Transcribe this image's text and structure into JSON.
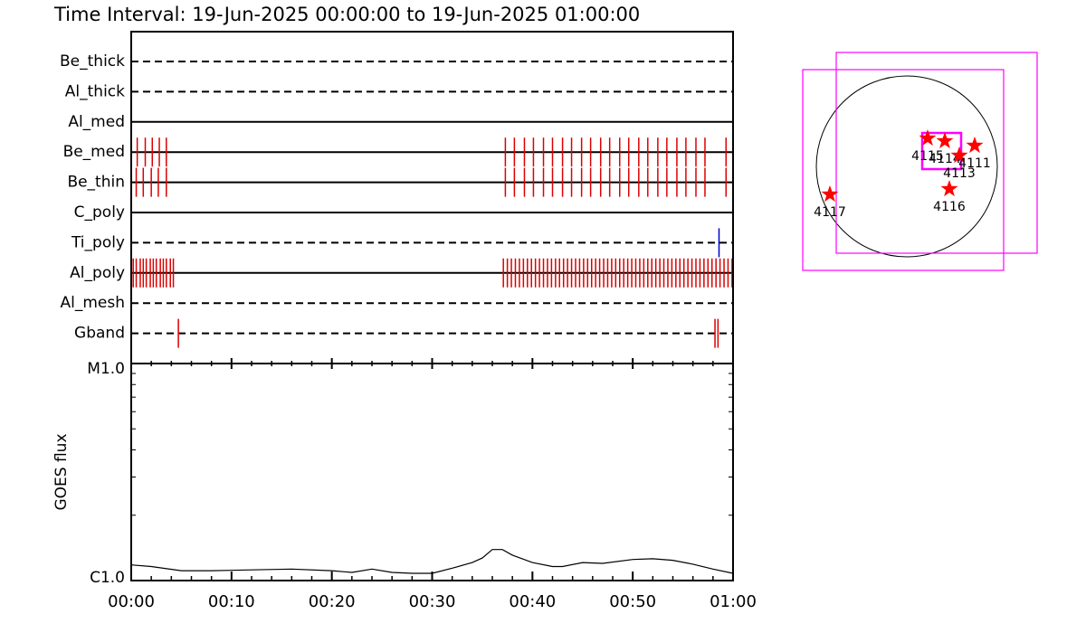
{
  "title": "Time Interval: 19-Jun-2025 00:00:00 to 19-Jun-2025 01:00:00",
  "chart_data": [
    {
      "type": "events",
      "xlim": [
        0,
        60
      ],
      "rows": [
        {
          "name": "Be_thick",
          "style": "dashed",
          "color": "#dd0000",
          "events": []
        },
        {
          "name": "Al_thick",
          "style": "dashed",
          "color": "#dd0000",
          "events": []
        },
        {
          "name": "Al_med",
          "style": "solid",
          "color": "#dd0000",
          "events": []
        },
        {
          "name": "Be_med",
          "style": "solid",
          "color": "#dd0000",
          "events": [
            0.6,
            1.4,
            2.1,
            2.8,
            3.5,
            37.3,
            38.2,
            39.2,
            40.1,
            41.1,
            42.0,
            43.0,
            43.9,
            44.9,
            45.8,
            46.8,
            47.7,
            48.7,
            49.6,
            50.6,
            51.5,
            52.5,
            53.4,
            54.4,
            55.3,
            56.3,
            57.2,
            59.3
          ]
        },
        {
          "name": "Be_thin",
          "style": "solid",
          "color": "#dd0000",
          "events": [
            0.5,
            1.2,
            2.0,
            2.7,
            3.5,
            37.3,
            38.2,
            39.2,
            40.1,
            41.1,
            42.0,
            43.0,
            43.9,
            44.9,
            45.8,
            46.8,
            47.7,
            48.7,
            49.6,
            50.6,
            51.5,
            52.5,
            53.4,
            54.4,
            55.3,
            56.3,
            57.2,
            59.3
          ]
        },
        {
          "name": "C_poly",
          "style": "solid",
          "color": "#dd0000",
          "events": []
        },
        {
          "name": "Ti_poly",
          "style": "dashed",
          "color": "#0000cc",
          "events": [
            58.6
          ]
        },
        {
          "name": "Al_poly",
          "style": "solid",
          "color": "#dd0000",
          "events": [
            0.2,
            0.5,
            0.9,
            1.2,
            1.5,
            1.9,
            2.2,
            2.5,
            2.9,
            3.2,
            3.5,
            3.9,
            4.2,
            37.1,
            37.5,
            37.9,
            38.3,
            38.7,
            39.1,
            39.5,
            39.9,
            40.3,
            40.7,
            41.1,
            41.5,
            41.9,
            42.3,
            42.7,
            43.1,
            43.5,
            43.9,
            44.3,
            44.7,
            45.1,
            45.5,
            45.9,
            46.3,
            46.7,
            47.1,
            47.5,
            47.9,
            48.3,
            48.7,
            49.1,
            49.5,
            49.9,
            50.3,
            50.7,
            51.1,
            51.5,
            51.9,
            52.3,
            52.7,
            53.1,
            53.5,
            53.9,
            54.3,
            54.7,
            55.1,
            55.5,
            55.9,
            56.3,
            56.7,
            57.1,
            57.5,
            57.9,
            58.3,
            58.7,
            59.1,
            59.5,
            59.9
          ]
        },
        {
          "name": "Al_mesh",
          "style": "dashed",
          "color": "#dd0000",
          "events": []
        },
        {
          "name": "Gband",
          "style": "dashed",
          "color": "#dd0000",
          "events": [
            4.7,
            58.2,
            58.5
          ]
        }
      ]
    },
    {
      "type": "line",
      "ylabel": "GOES flux",
      "color": "#000000",
      "log_scale": true,
      "x": [
        0,
        2,
        5,
        8,
        12,
        16,
        20,
        22,
        24,
        26,
        28,
        30,
        32,
        34,
        35,
        36,
        37,
        38,
        40,
        42,
        43,
        45,
        47,
        50,
        52,
        54,
        56,
        58,
        60
      ],
      "values": [
        1.18e-06,
        1.16e-06,
        1.11e-06,
        1.11e-06,
        1.12e-06,
        1.13e-06,
        1.11e-06,
        1.09e-06,
        1.13e-06,
        1.09e-06,
        1.08e-06,
        1.08e-06,
        1.14e-06,
        1.21e-06,
        1.27e-06,
        1.39e-06,
        1.39e-06,
        1.31e-06,
        1.21e-06,
        1.16e-06,
        1.16e-06,
        1.21e-06,
        1.2e-06,
        1.25e-06,
        1.26e-06,
        1.24e-06,
        1.19e-06,
        1.13e-06,
        1.08e-06
      ],
      "xlim": [
        0,
        60
      ],
      "xticks": [
        {
          "value": 0,
          "label": "00:00"
        },
        {
          "value": 10,
          "label": "00:10"
        },
        {
          "value": 20,
          "label": "00:20"
        },
        {
          "value": 30,
          "label": "00:30"
        },
        {
          "value": 40,
          "label": "00:40"
        },
        {
          "value": 50,
          "label": "00:50"
        },
        {
          "value": 60,
          "label": "01:00"
        }
      ],
      "ylim": [
        1e-06,
        1e-05
      ],
      "yticks": [
        {
          "value": 1e-06,
          "label": "C1.0"
        },
        {
          "value": 1e-05,
          "label": "M1.0"
        }
      ],
      "minor_yticks": [
        2e-06,
        3e-06,
        4e-06,
        5e-06,
        6e-06,
        7e-06,
        8e-06,
        9e-06
      ]
    },
    {
      "type": "disk",
      "color": "#ff0000",
      "box_color": "#ff00ff",
      "points": [
        {
          "label": "4115",
          "x": 0.23,
          "y": 0.31
        },
        {
          "label": "4114",
          "x": 0.42,
          "y": 0.28
        },
        {
          "label": "4113",
          "x": 0.58,
          "y": 0.12
        },
        {
          "label": "4111",
          "x": 0.75,
          "y": 0.23
        },
        {
          "label": "4116",
          "x": 0.47,
          "y": -0.25
        },
        {
          "label": "4117",
          "x": -0.85,
          "y": -0.31
        }
      ],
      "boxes": [
        {
          "x": 0.33,
          "y": 0.15,
          "width": 2.22,
          "height": 2.22
        },
        {
          "x": -0.04,
          "y": -0.04,
          "width": 2.22,
          "height": 2.22
        },
        {
          "x": 0.385,
          "y": 0.17,
          "width": 0.43,
          "height": 0.4
        }
      ]
    }
  ]
}
